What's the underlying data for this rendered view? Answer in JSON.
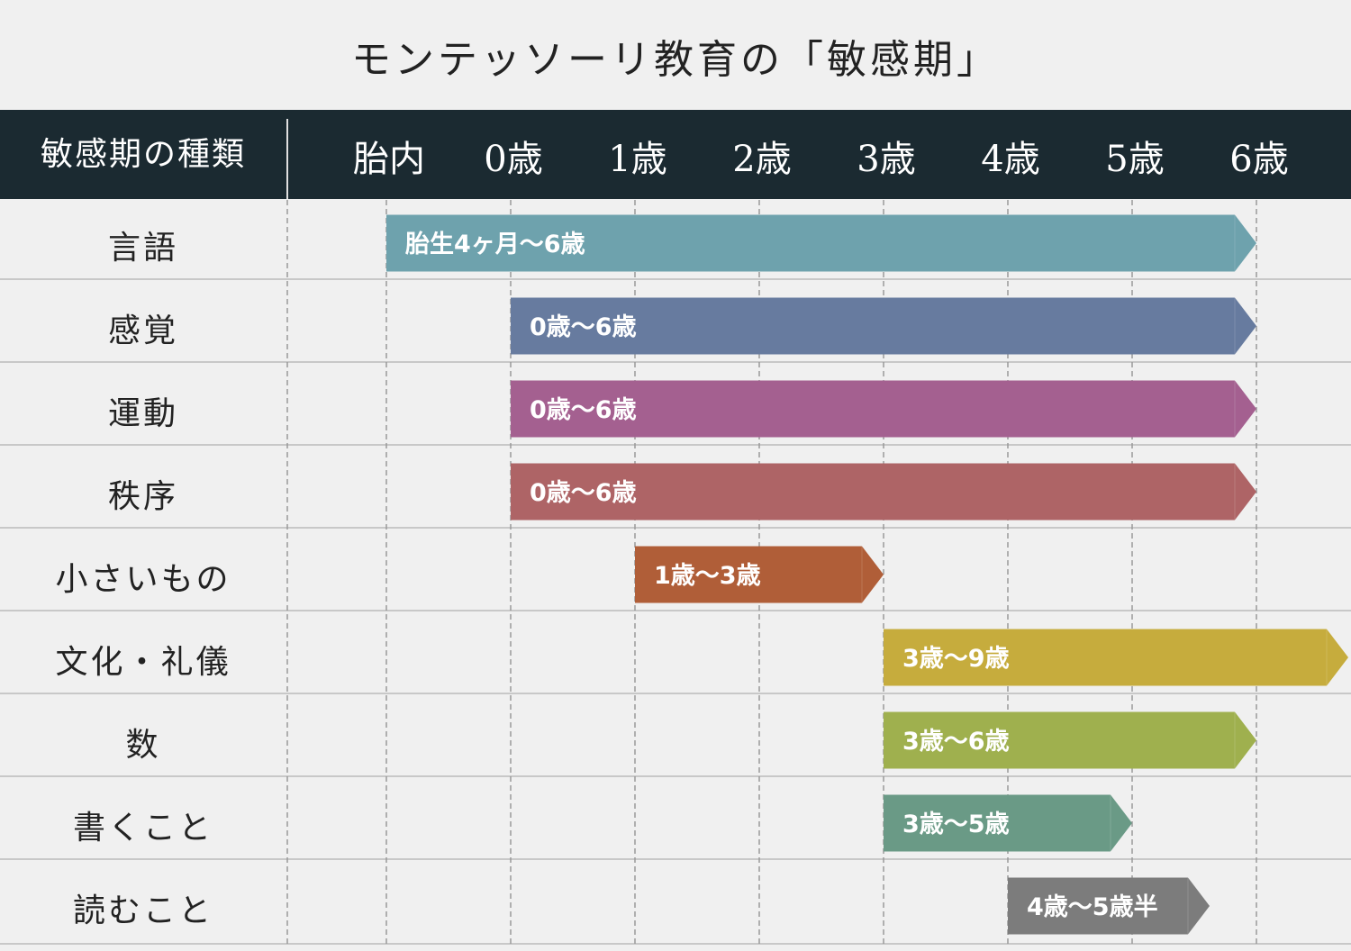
{
  "chart_data": {
    "type": "gantt",
    "title": "モンテッソーリ教育の「敏感期」",
    "header_label": "敏感期の種類",
    "ticks": [
      "胎内",
      "0歳",
      "1歳",
      "2歳",
      "3歳",
      "4歳",
      "5歳",
      "6歳"
    ],
    "tick_values": [
      "胎内",
      0,
      1,
      2,
      3,
      4,
      5,
      6
    ],
    "grid": true,
    "rows": [
      {
        "name": "言語",
        "start": "胎内",
        "end": 6,
        "label": "胎生4ヶ月〜6歳",
        "color": "#6ea2ad"
      },
      {
        "name": "感覚",
        "start": 0,
        "end": 6,
        "label": "0歳〜6歳",
        "color": "#677b9f"
      },
      {
        "name": "運動",
        "start": 0,
        "end": 6,
        "label": "0歳〜6歳",
        "color": "#a46090"
      },
      {
        "name": "秩序",
        "start": 0,
        "end": 6,
        "label": "0歳〜6歳",
        "color": "#ae6466"
      },
      {
        "name": "小さいもの",
        "start": 1,
        "end": 3,
        "label": "1歳〜3歳",
        "color": "#b05e38"
      },
      {
        "name": "文化・礼儀",
        "start": 3,
        "end": 9,
        "label": "3歳〜9歳",
        "color": "#c6ac3d"
      },
      {
        "name": "数",
        "start": 3,
        "end": 6,
        "label": "3歳〜6歳",
        "color": "#9fb04e"
      },
      {
        "name": "書くこと",
        "start": 3,
        "end": 5,
        "label": "3歳〜5歳",
        "color": "#6a9a86"
      },
      {
        "name": "読むこと",
        "start": 4,
        "end": 5.5,
        "label": "4歳〜5歳半",
        "color": "#7c7c7c"
      }
    ]
  }
}
